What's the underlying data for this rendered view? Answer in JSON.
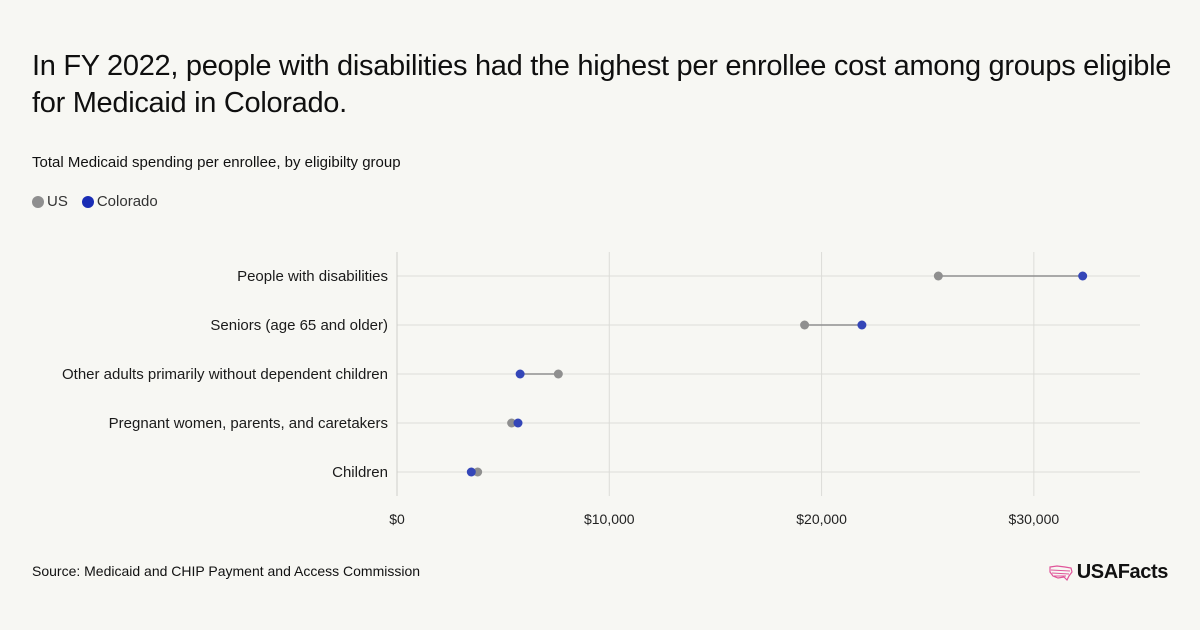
{
  "title": "In FY 2022, people with disabilities had the highest per enrollee cost among groups eligible for Medicaid in Colorado.",
  "subtitle": "Total Medicaid spending per enrollee, by eligibilty group",
  "legend": [
    {
      "label": "US",
      "color": "#8f8f8f"
    },
    {
      "label": "Colorado",
      "color": "#1a2db5"
    }
  ],
  "source": "Source: Medicaid and CHIP Payment and Access Commission",
  "brand": "USAFacts",
  "chart_data": {
    "type": "dot-plot",
    "categories": [
      "People with disabilities",
      "Seniors (age 65 and older)",
      "Other adults primarily without dependent children",
      "Pregnant women, parents, and caretakers",
      "Children"
    ],
    "series": [
      {
        "name": "US",
        "color": "#8f8f8f",
        "values": [
          25500,
          19200,
          7600,
          5400,
          3800
        ]
      },
      {
        "name": "Colorado",
        "color": "#3446b8",
        "values": [
          32300,
          21900,
          5800,
          5700,
          3500
        ]
      }
    ],
    "xlim": [
      0,
      35000
    ],
    "xticks": [
      0,
      10000,
      20000,
      30000
    ],
    "xtick_labels": [
      "$0",
      "$10,000",
      "$20,000",
      "$30,000"
    ],
    "grid": true
  }
}
